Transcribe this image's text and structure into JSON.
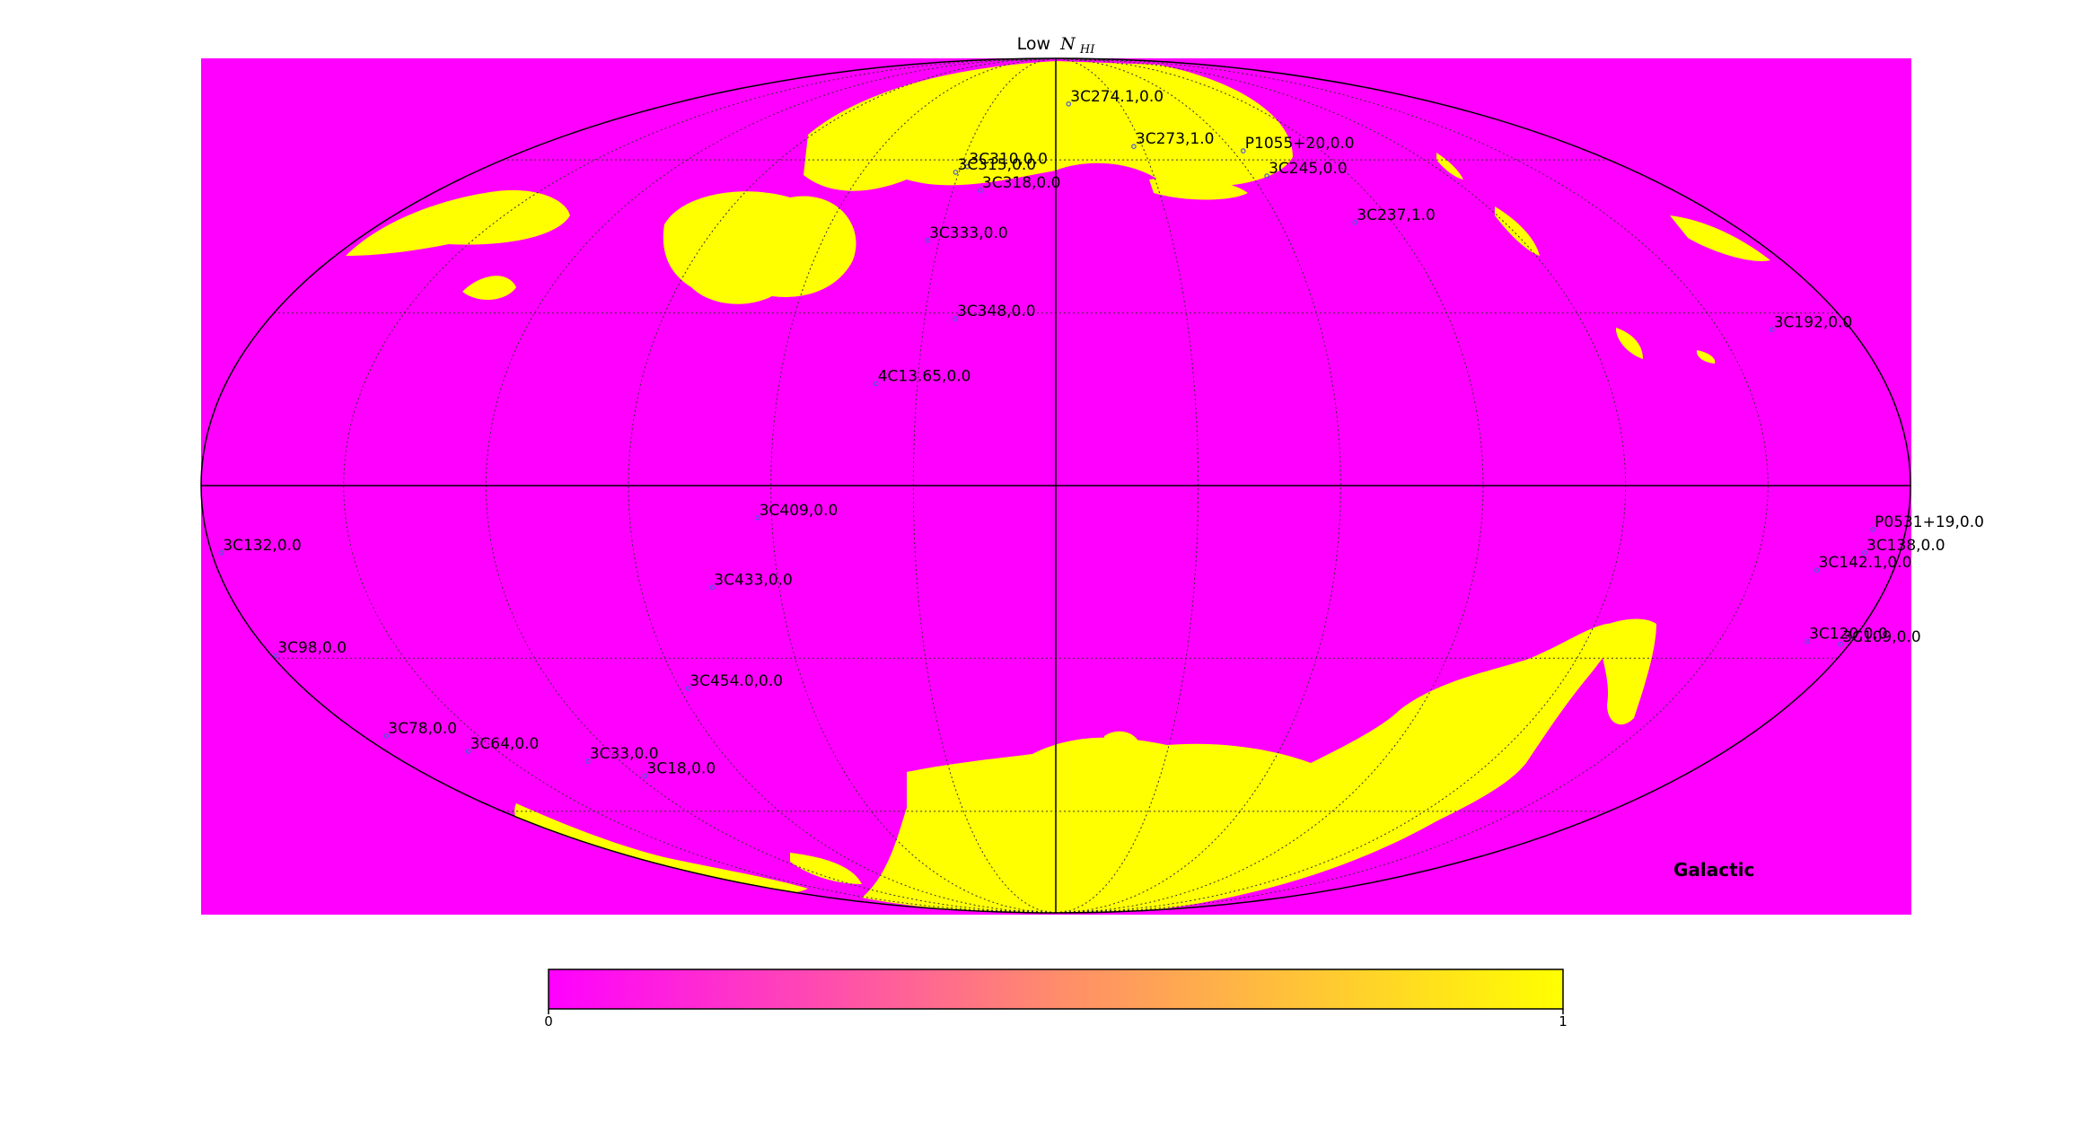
{
  "figure": {
    "title_text": "Low",
    "title_math": "N",
    "title_math_sub": "HI",
    "frame_label": "Galactic",
    "projection": "mollweide"
  },
  "colors": {
    "low": "#ff00ff",
    "high": "#ffff00",
    "mid": "#ff8c6b",
    "marker": "#4a5bd6"
  },
  "colorbar": {
    "min_label": "0",
    "max_label": "1"
  },
  "sources": [
    {
      "label": "3C274.1,0.0",
      "l": -6.0,
      "b": 73.5
    },
    {
      "label": "3C273,1.0",
      "l": -27.0,
      "b": 63.0
    },
    {
      "label": "P1055+20,0.0",
      "l": -63.5,
      "b": 62.0
    },
    {
      "label": "3C245,0.0",
      "l": -64.5,
      "b": 56.5
    },
    {
      "label": "3C237,1.0",
      "l": -80.0,
      "b": 47.0
    },
    {
      "label": "3C192,0.0",
      "l": -162.0,
      "b": 27.0
    },
    {
      "label": "3C310,0.0",
      "l": 28.0,
      "b": 58.5
    },
    {
      "label": "3C315,0.0",
      "l": 31.0,
      "b": 57.3
    },
    {
      "label": "3C318,0.0",
      "l": 22.0,
      "b": 53.5
    },
    {
      "label": "3C333,0.0",
      "l": 33.0,
      "b": 43.5
    },
    {
      "label": "3C348,0.0",
      "l": 23.0,
      "b": 29.0
    },
    {
      "label": "4C13.65,0.0",
      "l": 39.0,
      "b": 17.5
    },
    {
      "label": "3C409,0.0",
      "l": 63.0,
      "b": -5.5
    },
    {
      "label": "3C433,0.0",
      "l": 74.5,
      "b": -17.5
    },
    {
      "label": "3C454.0,0.0",
      "l": 88.0,
      "b": -35.5
    },
    {
      "label": "3C132,0.0",
      "l": 178.0,
      "b": -11.5
    },
    {
      "label": "3C98,0.0",
      "l": 179.0,
      "b": -29.5
    },
    {
      "label": "3C78,0.0",
      "l": 174.0,
      "b": -44.5
    },
    {
      "label": "3C64,0.0",
      "l": 158.0,
      "b": -47.5
    },
    {
      "label": "3C33,0.0",
      "l": 129.0,
      "b": -49.5
    },
    {
      "label": "3C18,0.0",
      "l": 118.0,
      "b": -52.5
    },
    {
      "label": "P0531+19,0.0",
      "l": -173.0,
      "b": -7.5
    },
    {
      "label": "3C138,0.0",
      "l": -172.5,
      "b": -11.5
    },
    {
      "label": "3C142.1,0.0",
      "l": -163.5,
      "b": -14.5
    },
    {
      "label": "3C120,0.0",
      "l": -170.0,
      "b": -27.0
    },
    {
      "label": "3C109,0.0",
      "l": -178.0,
      "b": -27.5
    }
  ]
}
